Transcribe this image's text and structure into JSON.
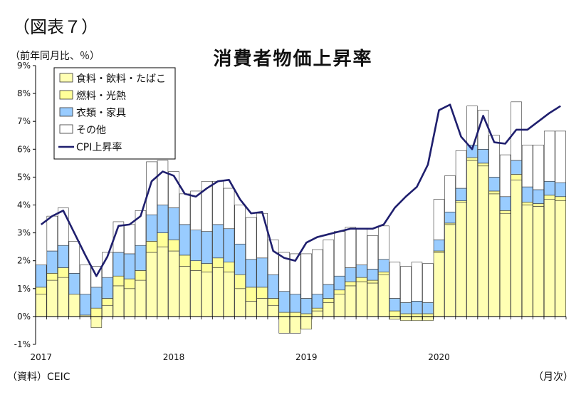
{
  "figure_label": "（図表７）",
  "chart_data": {
    "type": "bar",
    "title": "消費者物価上昇率",
    "ylabel": "（前年同月比、％）",
    "xlabel": "（月次）",
    "source": "（資料）CEIC",
    "ylim": [
      -1,
      9
    ],
    "y_ticks": [
      "-1%",
      "0%",
      "1%",
      "2%",
      "3%",
      "4%",
      "5%",
      "6%",
      "7%",
      "8%",
      "9%"
    ],
    "x_tick_labels": [
      "2017",
      "2018",
      "2019",
      "2020"
    ],
    "x_tick_index": [
      0,
      12,
      24,
      36
    ],
    "legend_position": "top-left",
    "categories": [
      "2017-01",
      "2017-02",
      "2017-03",
      "2017-04",
      "2017-05",
      "2017-06",
      "2017-07",
      "2017-08",
      "2017-09",
      "2017-10",
      "2017-11",
      "2017-12",
      "2018-01",
      "2018-02",
      "2018-03",
      "2018-04",
      "2018-05",
      "2018-06",
      "2018-07",
      "2018-08",
      "2018-09",
      "2018-10",
      "2018-11",
      "2018-12",
      "2019-01",
      "2019-02",
      "2019-03",
      "2019-04",
      "2019-05",
      "2019-06",
      "2019-07",
      "2019-08",
      "2019-09",
      "2019-10",
      "2019-11",
      "2019-12",
      "2020-01",
      "2020-02",
      "2020-03",
      "2020-04",
      "2020-05",
      "2020-06",
      "2020-07",
      "2020-08",
      "2020-09",
      "2020-10",
      "2020-11",
      "2020-12"
    ],
    "series": [
      {
        "name": "食料・飲料・たばこ",
        "type": "bar",
        "color": "#ffffb3",
        "values": [
          0.8,
          1.3,
          1.4,
          0.8,
          0.05,
          -0.4,
          0.4,
          1.1,
          1.0,
          1.3,
          2.3,
          2.5,
          2.35,
          1.8,
          1.65,
          1.6,
          1.75,
          1.6,
          1.0,
          0.55,
          0.65,
          0.4,
          -0.6,
          -0.6,
          -0.45,
          0.2,
          0.5,
          0.8,
          1.1,
          1.25,
          1.2,
          1.5,
          -0.1,
          -0.15,
          -0.15,
          -0.15,
          2.3,
          3.3,
          4.1,
          5.6,
          5.4,
          4.4,
          3.7,
          4.9,
          4.0,
          3.95,
          4.2,
          4.15
        ]
      },
      {
        "name": "燃料・光熱",
        "type": "bar",
        "color": "#ffff99",
        "values": [
          0.25,
          0.25,
          0.35,
          0.0,
          0.0,
          0.3,
          0.25,
          0.35,
          0.35,
          0.35,
          0.4,
          0.5,
          0.4,
          0.4,
          0.35,
          0.3,
          0.35,
          0.35,
          0.5,
          0.5,
          0.4,
          0.25,
          0.15,
          0.15,
          0.1,
          0.1,
          0.15,
          0.15,
          0.15,
          0.15,
          0.1,
          0.1,
          0.2,
          0.1,
          0.1,
          0.1,
          0.05,
          0.05,
          0.05,
          0.1,
          0.1,
          0.1,
          0.1,
          0.2,
          0.1,
          0.1,
          0.15,
          0.15
        ]
      },
      {
        "name": "衣類・家具",
        "type": "bar",
        "color": "#99ccff",
        "values": [
          0.8,
          0.8,
          0.8,
          0.75,
          0.75,
          0.75,
          0.75,
          0.85,
          0.9,
          0.9,
          0.95,
          1.0,
          1.15,
          1.1,
          1.1,
          1.15,
          1.2,
          1.2,
          1.1,
          1.0,
          1.05,
          0.85,
          0.75,
          0.65,
          0.55,
          0.5,
          0.5,
          0.5,
          0.5,
          0.45,
          0.4,
          0.45,
          0.45,
          0.4,
          0.45,
          0.4,
          0.4,
          0.4,
          0.45,
          0.45,
          0.5,
          0.5,
          0.5,
          0.5,
          0.55,
          0.5,
          0.5,
          0.5
        ]
      },
      {
        "name": "その他",
        "type": "bar",
        "color": "#ffffff",
        "values": [
          0.0,
          1.25,
          1.35,
          1.15,
          1.05,
          0.75,
          0.9,
          1.1,
          1.05,
          1.25,
          1.9,
          1.6,
          1.3,
          1.1,
          1.4,
          1.8,
          1.55,
          1.45,
          1.4,
          1.5,
          1.6,
          1.25,
          1.4,
          1.45,
          1.6,
          1.6,
          1.6,
          1.6,
          1.45,
          1.3,
          1.2,
          1.2,
          1.3,
          1.3,
          1.4,
          1.4,
          1.45,
          1.3,
          1.35,
          1.4,
          1.4,
          1.5,
          1.5,
          2.1,
          1.5,
          1.6,
          1.8,
          1.85
        ]
      },
      {
        "name": "CPI上昇率",
        "type": "line",
        "color": "#1f1f6e",
        "values": [
          3.3,
          3.6,
          3.8,
          3.0,
          2.2,
          1.45,
          2.15,
          3.25,
          3.3,
          3.6,
          4.85,
          5.2,
          5.05,
          4.4,
          4.3,
          4.6,
          4.85,
          4.9,
          4.2,
          3.7,
          3.75,
          2.35,
          2.1,
          2.0,
          2.65,
          2.85,
          2.95,
          3.05,
          3.15,
          3.15,
          3.15,
          3.3,
          3.9,
          4.3,
          4.65,
          5.45,
          7.4,
          7.6,
          6.45,
          6.0,
          7.2,
          6.25,
          6.2,
          6.7,
          6.7,
          7.0,
          7.3,
          7.55
        ]
      }
    ]
  }
}
